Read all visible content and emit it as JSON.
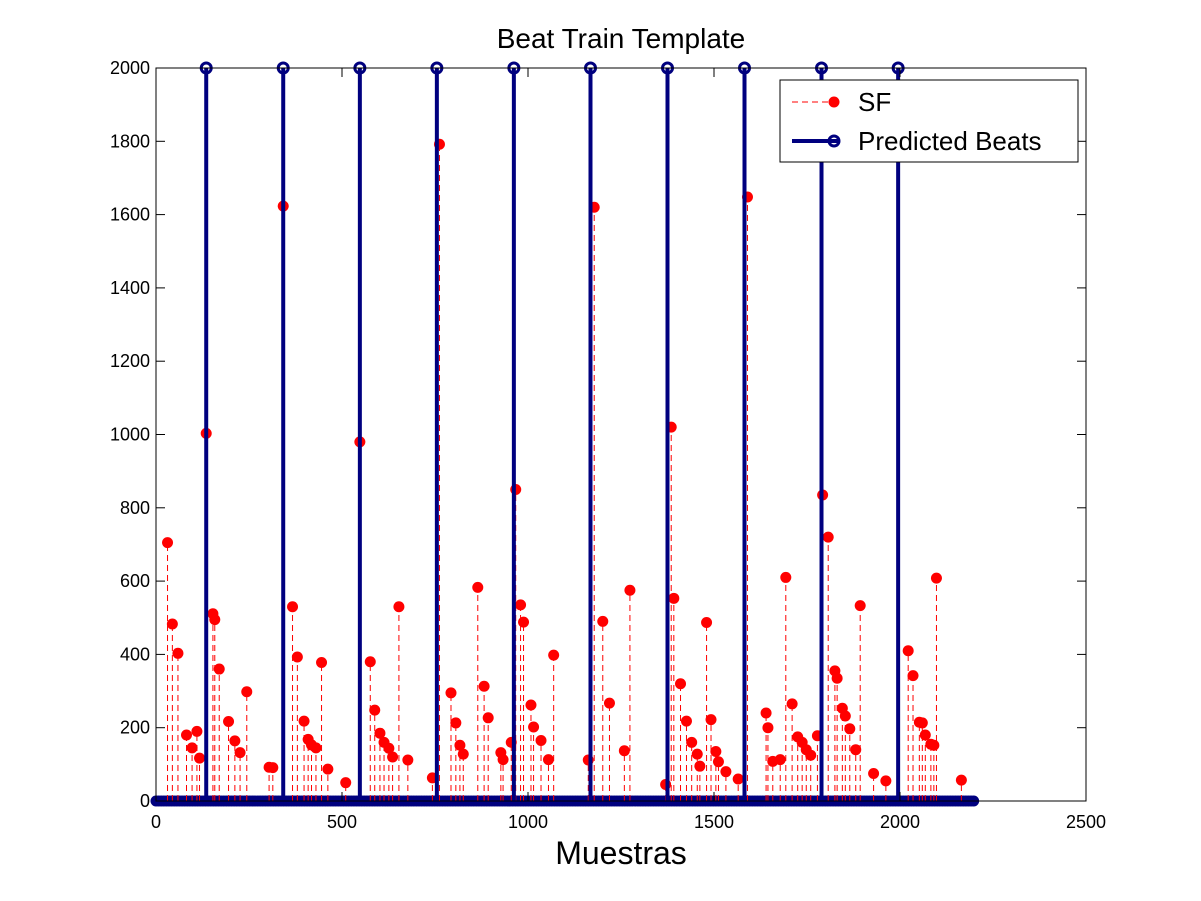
{
  "chart_data": {
    "type": "scatter",
    "title": "Beat Train Template",
    "xlabel": "Muestras",
    "ylabel": "",
    "xlim": [
      0,
      2500
    ],
    "ylim": [
      0,
      2000
    ],
    "xticks": [
      0,
      500,
      1000,
      1500,
      2000,
      2500
    ],
    "yticks": [
      0,
      200,
      400,
      600,
      800,
      1000,
      1200,
      1400,
      1600,
      1800,
      2000
    ],
    "grid": false,
    "legend_position": "top-right",
    "colors": {
      "sf": "#ff0000",
      "beats": "#00007f",
      "axes": "#000000"
    },
    "series": [
      {
        "name": "SF",
        "style": "dashed stem with filled circle markers",
        "points": [
          [
            31,
            705
          ],
          [
            44,
            483
          ],
          [
            59,
            403
          ],
          [
            82,
            180
          ],
          [
            97,
            145
          ],
          [
            110,
            190
          ],
          [
            117,
            117
          ],
          [
            135,
            1003
          ],
          [
            153,
            511
          ],
          [
            158,
            495
          ],
          [
            170,
            360
          ],
          [
            195,
            217
          ],
          [
            212,
            164
          ],
          [
            226,
            132
          ],
          [
            244,
            298
          ],
          [
            304,
            92
          ],
          [
            314,
            91
          ],
          [
            342,
            1623
          ],
          [
            367,
            530
          ],
          [
            380,
            393
          ],
          [
            398,
            218
          ],
          [
            409,
            168
          ],
          [
            418,
            153
          ],
          [
            430,
            145
          ],
          [
            445,
            378
          ],
          [
            462,
            87
          ],
          [
            510,
            50
          ],
          [
            548,
            980
          ],
          [
            576,
            380
          ],
          [
            588,
            248
          ],
          [
            602,
            185
          ],
          [
            613,
            160
          ],
          [
            626,
            144
          ],
          [
            636,
            120
          ],
          [
            653,
            530
          ],
          [
            677,
            112
          ],
          [
            743,
            63
          ],
          [
            762,
            1792
          ],
          [
            793,
            295
          ],
          [
            806,
            213
          ],
          [
            817,
            152
          ],
          [
            826,
            128
          ],
          [
            865,
            583
          ],
          [
            882,
            313
          ],
          [
            893,
            227
          ],
          [
            927,
            132
          ],
          [
            933,
            113
          ],
          [
            955,
            160
          ],
          [
            967,
            850
          ],
          [
            980,
            535
          ],
          [
            988,
            488
          ],
          [
            1008,
            262
          ],
          [
            1015,
            202
          ],
          [
            1035,
            165
          ],
          [
            1055,
            113
          ],
          [
            1069,
            398
          ],
          [
            1162,
            112
          ],
          [
            1178,
            1620
          ],
          [
            1201,
            490
          ],
          [
            1219,
            267
          ],
          [
            1259,
            137
          ],
          [
            1274,
            575
          ],
          [
            1370,
            45
          ],
          [
            1385,
            1020
          ],
          [
            1392,
            553
          ],
          [
            1410,
            320
          ],
          [
            1426,
            218
          ],
          [
            1440,
            160
          ],
          [
            1455,
            128
          ],
          [
            1462,
            95
          ],
          [
            1480,
            487
          ],
          [
            1492,
            222
          ],
          [
            1505,
            135
          ],
          [
            1512,
            107
          ],
          [
            1532,
            80
          ],
          [
            1565,
            60
          ],
          [
            1590,
            1648
          ],
          [
            1640,
            240
          ],
          [
            1645,
            200
          ],
          [
            1658,
            108
          ],
          [
            1678,
            113
          ],
          [
            1693,
            610
          ],
          [
            1710,
            265
          ],
          [
            1725,
            175
          ],
          [
            1737,
            160
          ],
          [
            1748,
            140
          ],
          [
            1760,
            125
          ],
          [
            1778,
            178
          ],
          [
            1792,
            835
          ],
          [
            1807,
            720
          ],
          [
            1825,
            355
          ],
          [
            1831,
            335
          ],
          [
            1845,
            253
          ],
          [
            1853,
            232
          ],
          [
            1865,
            197
          ],
          [
            1881,
            140
          ],
          [
            1893,
            533
          ],
          [
            1929,
            75
          ],
          [
            1962,
            55
          ],
          [
            2022,
            410
          ],
          [
            2035,
            342
          ],
          [
            2052,
            215
          ],
          [
            2060,
            213
          ],
          [
            2068,
            180
          ],
          [
            2083,
            155
          ],
          [
            2091,
            152
          ],
          [
            2098,
            608
          ],
          [
            2165,
            57
          ]
        ]
      },
      {
        "name": "Predicted Beats",
        "style": "solid stem with open circle markers",
        "x": [
          135,
          342,
          548,
          755,
          962,
          1168,
          1375,
          1582,
          1789,
          1995
        ],
        "y": 2000
      }
    ],
    "baseline_markers_x_range": [
      0,
      2200
    ]
  }
}
